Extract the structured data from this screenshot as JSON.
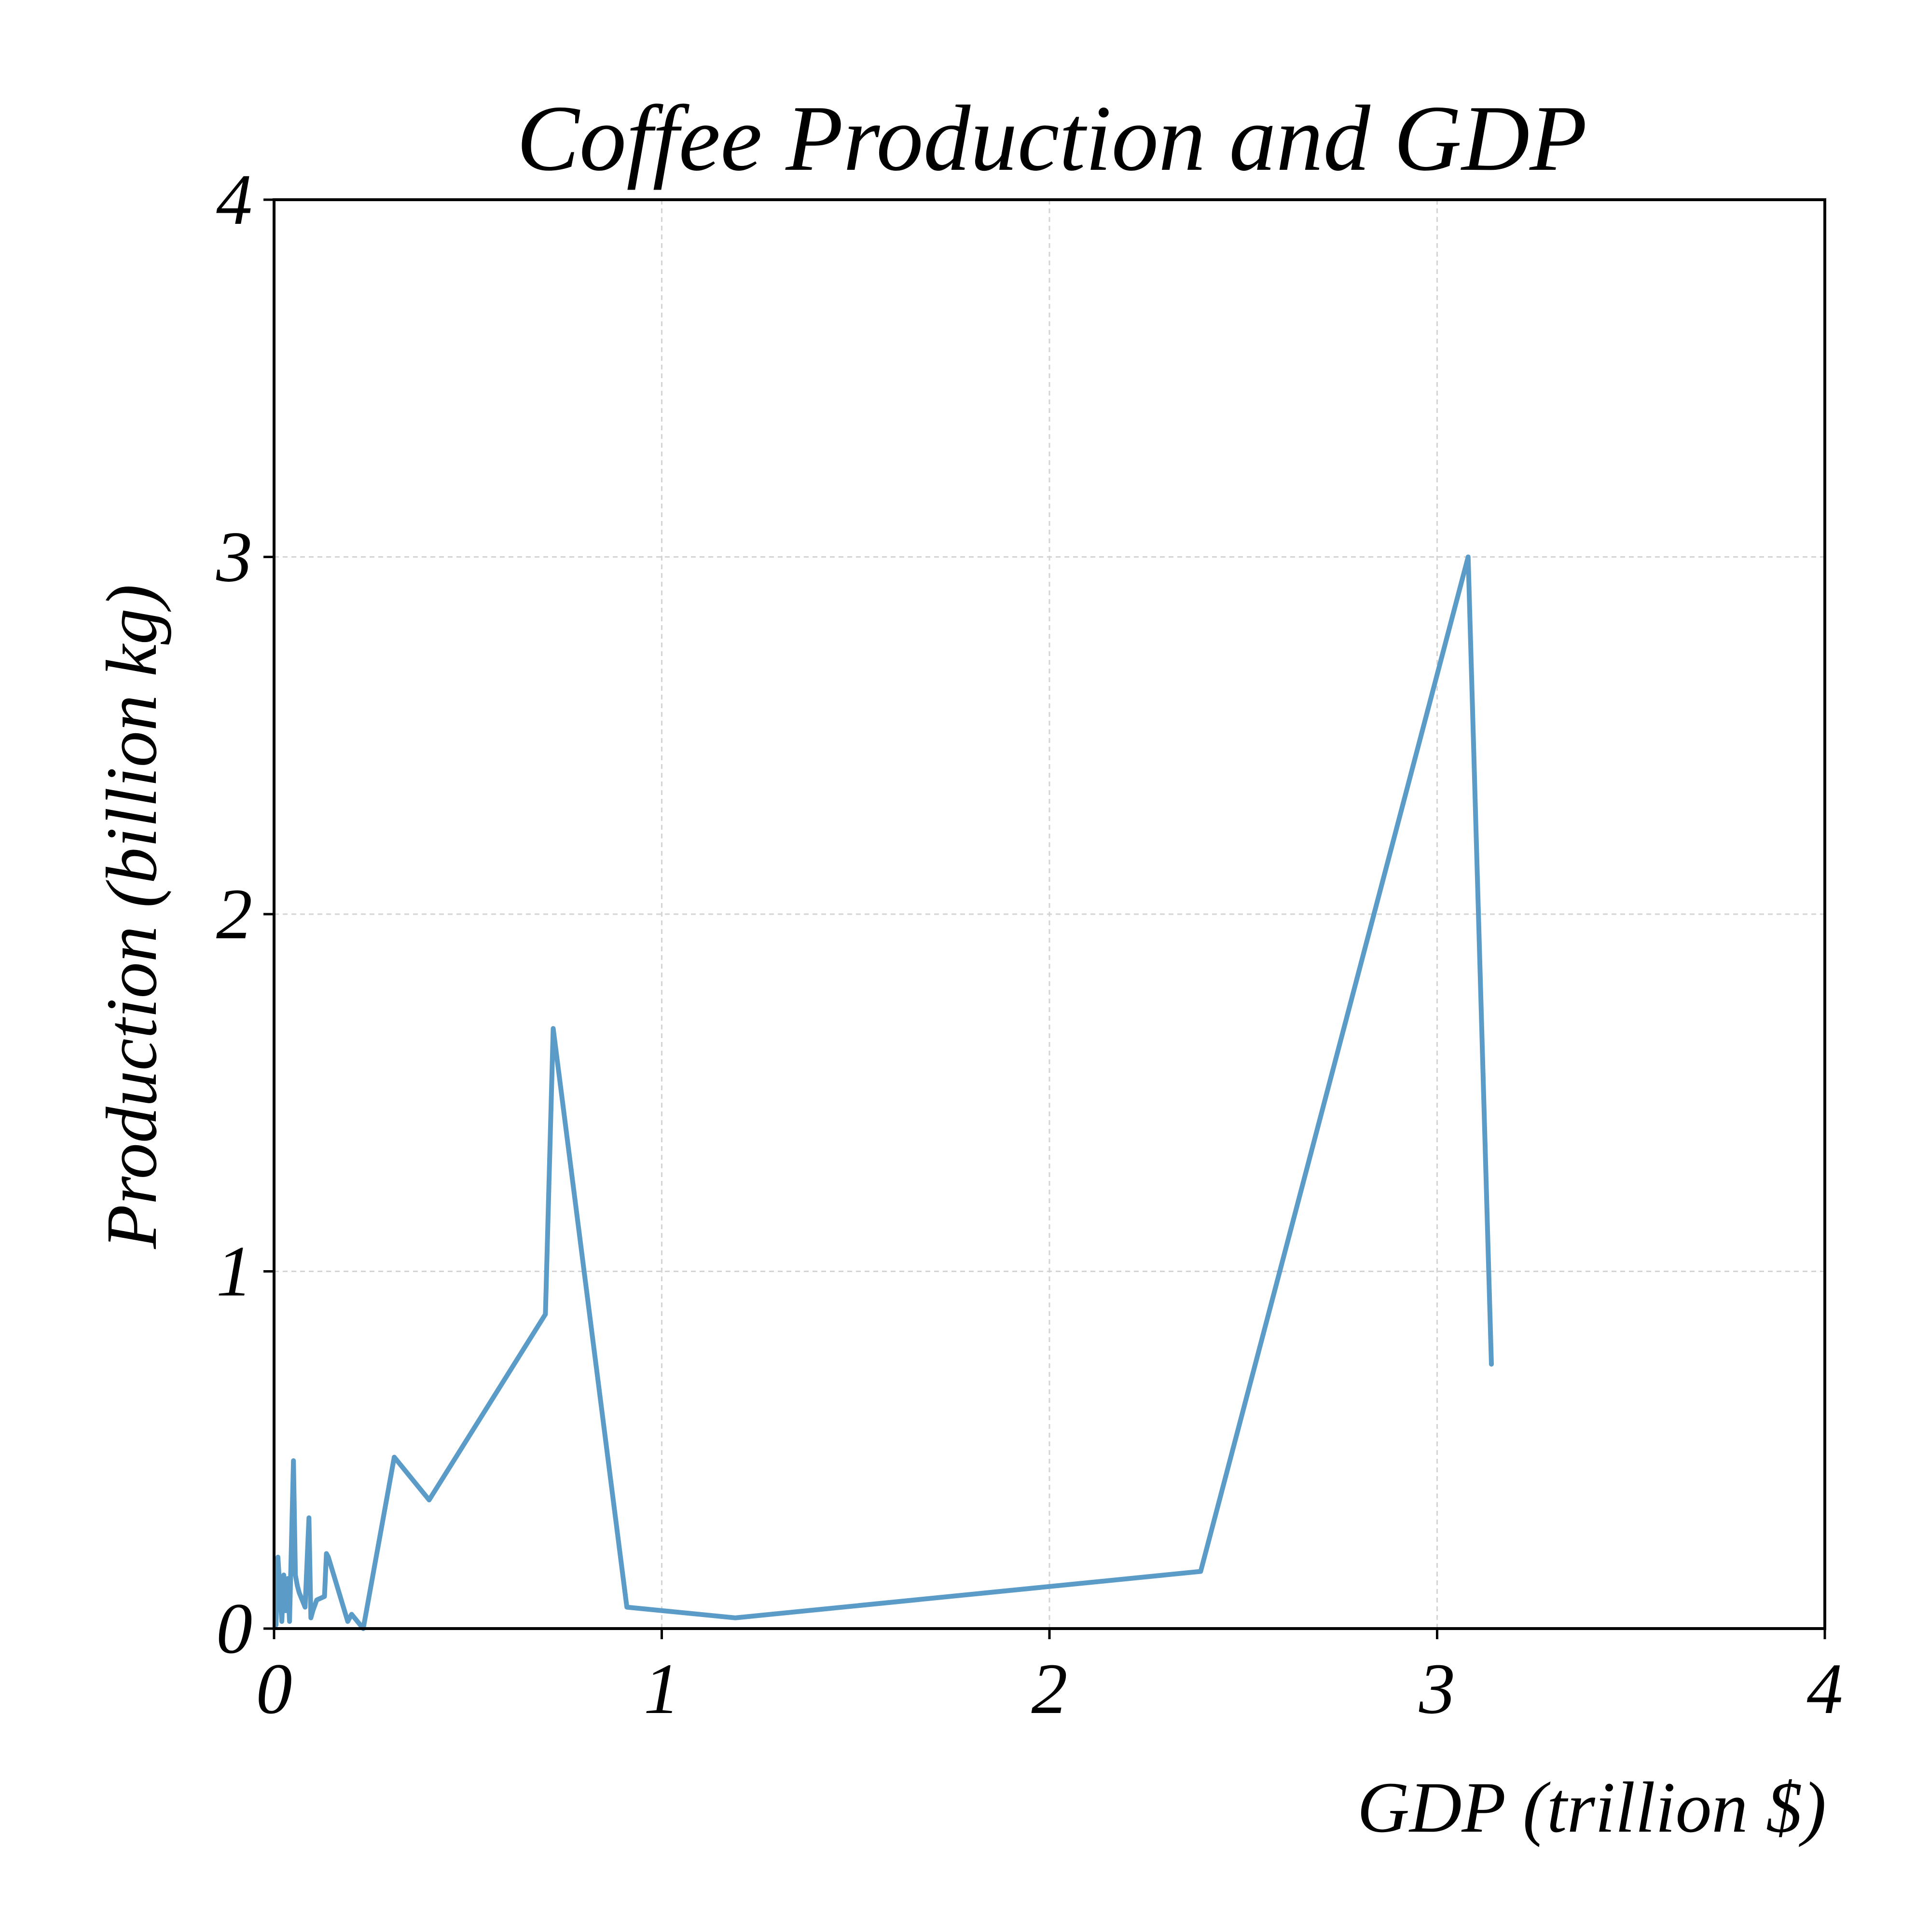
{
  "chart_data": {
    "type": "line",
    "title": "Coffee Production and GDP",
    "xlabel": "GDP (trillion $)",
    "ylabel": "Production (billion kg)",
    "xlim": [
      0,
      4
    ],
    "ylim": [
      0,
      4
    ],
    "xticks": [
      "0",
      "1",
      "2",
      "3",
      "4"
    ],
    "yticks": [
      "0",
      "1",
      "2",
      "3",
      "4"
    ],
    "grid": true,
    "line_color": "#5b9bc8",
    "series": [
      {
        "x": [
          0.005,
          0.01,
          0.02,
          0.025,
          0.03,
          0.035,
          0.04,
          0.05,
          0.055,
          0.06,
          0.065,
          0.08,
          0.09,
          0.095,
          0.1,
          0.11,
          0.13,
          0.135,
          0.14,
          0.19,
          0.2,
          0.23,
          0.31,
          0.4,
          0.7,
          0.72,
          0.91,
          1.19,
          2.39,
          3.08,
          3.14
        ],
        "y": [
          0.01,
          0.2,
          0.02,
          0.15,
          0.05,
          0.14,
          0.02,
          0.47,
          0.15,
          0.12,
          0.1,
          0.06,
          0.31,
          0.03,
          0.05,
          0.08,
          0.09,
          0.21,
          0.2,
          0.02,
          0.04,
          0.0,
          0.48,
          0.36,
          0.88,
          1.68,
          0.06,
          0.03,
          0.16,
          3.0,
          0.74
        ]
      }
    ]
  }
}
